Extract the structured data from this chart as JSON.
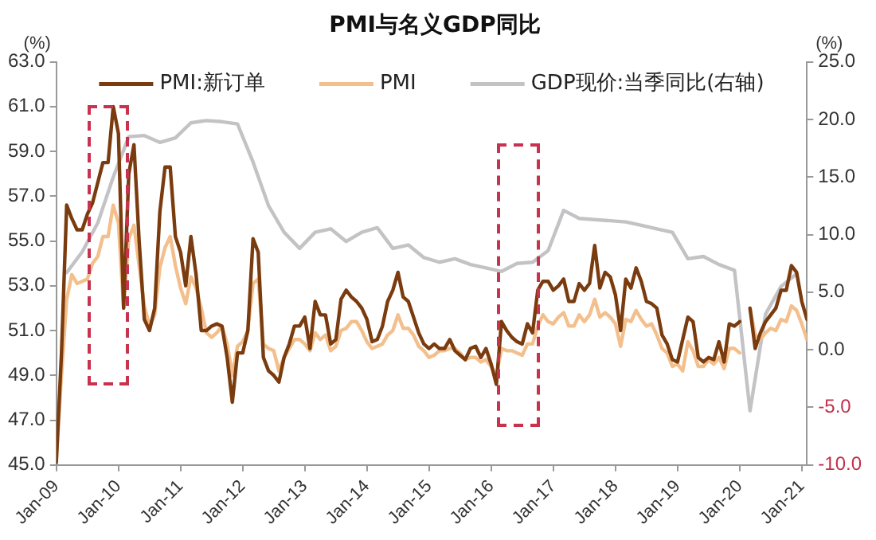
{
  "chart_data": {
    "type": "line",
    "title": "PMI与名义GDP同比",
    "ylabel": "(%)",
    "y2label": "(%)",
    "xlim": [
      "2009-01",
      "2021-02"
    ],
    "xticks": [
      {
        "value": "2009-01",
        "label": "Jan-09"
      },
      {
        "value": "2010-01",
        "label": "Jan-10"
      },
      {
        "value": "2011-01",
        "label": "Jan-11"
      },
      {
        "value": "2012-01",
        "label": "Jan-12"
      },
      {
        "value": "2013-01",
        "label": "Jan-13"
      },
      {
        "value": "2014-01",
        "label": "Jan-14"
      },
      {
        "value": "2015-01",
        "label": "Jan-15"
      },
      {
        "value": "2016-01",
        "label": "Jan-16"
      },
      {
        "value": "2017-01",
        "label": "Jan-17"
      },
      {
        "value": "2018-01",
        "label": "Jan-18"
      },
      {
        "value": "2019-01",
        "label": "Jan-19"
      },
      {
        "value": "2020-01",
        "label": "Jan-20"
      },
      {
        "value": "2021-01",
        "label": "Jan-21"
      }
    ],
    "ylim": [
      45,
      63
    ],
    "yticks": [
      {
        "value": 45,
        "label": "45.0"
      },
      {
        "value": 47,
        "label": "47.0"
      },
      {
        "value": 49,
        "label": "49.0"
      },
      {
        "value": 51,
        "label": "51.0"
      },
      {
        "value": 53,
        "label": "53.0"
      },
      {
        "value": 55,
        "label": "55.0"
      },
      {
        "value": 57,
        "label": "57.0"
      },
      {
        "value": 59,
        "label": "59.0"
      },
      {
        "value": 61,
        "label": "61.0"
      },
      {
        "value": 63,
        "label": "63.0"
      }
    ],
    "y2lim": [
      -10,
      25
    ],
    "y2ticks": [
      {
        "value": -10,
        "label": "-10.0"
      },
      {
        "value": -5,
        "label": "-5.0"
      },
      {
        "value": 0,
        "label": "0.0"
      },
      {
        "value": 5,
        "label": "5.0"
      },
      {
        "value": 10,
        "label": "10.0"
      },
      {
        "value": 15,
        "label": "15.0"
      },
      {
        "value": 20,
        "label": "20.0"
      },
      {
        "value": 25,
        "label": "25.0"
      }
    ],
    "grid": false,
    "legend": "top",
    "marker": "none",
    "line_style": "solid",
    "x": [
      "2009-01",
      "2009-02",
      "2009-03",
      "2009-04",
      "2009-05",
      "2009-06",
      "2009-07",
      "2009-08",
      "2009-09",
      "2009-10",
      "2009-11",
      "2009-12",
      "2010-01",
      "2010-02",
      "2010-03",
      "2010-04",
      "2010-05",
      "2010-06",
      "2010-07",
      "2010-08",
      "2010-09",
      "2010-10",
      "2010-11",
      "2010-12",
      "2011-01",
      "2011-02",
      "2011-03",
      "2011-04",
      "2011-05",
      "2011-06",
      "2011-07",
      "2011-08",
      "2011-09",
      "2011-10",
      "2011-11",
      "2011-12",
      "2012-01",
      "2012-02",
      "2012-03",
      "2012-04",
      "2012-05",
      "2012-06",
      "2012-07",
      "2012-08",
      "2012-09",
      "2012-10",
      "2012-11",
      "2012-12",
      "2013-01",
      "2013-02",
      "2013-03",
      "2013-04",
      "2013-05",
      "2013-06",
      "2013-07",
      "2013-08",
      "2013-09",
      "2013-10",
      "2013-11",
      "2013-12",
      "2014-01",
      "2014-02",
      "2014-03",
      "2014-04",
      "2014-05",
      "2014-06",
      "2014-07",
      "2014-08",
      "2014-09",
      "2014-10",
      "2014-11",
      "2014-12",
      "2015-01",
      "2015-02",
      "2015-03",
      "2015-04",
      "2015-05",
      "2015-06",
      "2015-07",
      "2015-08",
      "2015-09",
      "2015-10",
      "2015-11",
      "2015-12",
      "2016-01",
      "2016-02",
      "2016-03",
      "2016-04",
      "2016-05",
      "2016-06",
      "2016-07",
      "2016-08",
      "2016-09",
      "2016-10",
      "2016-11",
      "2016-12",
      "2017-01",
      "2017-02",
      "2017-03",
      "2017-04",
      "2017-05",
      "2017-06",
      "2017-07",
      "2017-08",
      "2017-09",
      "2017-10",
      "2017-11",
      "2017-12",
      "2018-01",
      "2018-02",
      "2018-03",
      "2018-04",
      "2018-05",
      "2018-06",
      "2018-07",
      "2018-08",
      "2018-09",
      "2018-10",
      "2018-11",
      "2018-12",
      "2019-01",
      "2019-02",
      "2019-03",
      "2019-04",
      "2019-05",
      "2019-06",
      "2019-07",
      "2019-08",
      "2019-09",
      "2019-10",
      "2019-11",
      "2019-12",
      "2020-01",
      "2020-02",
      "2020-03",
      "2020-04",
      "2020-05",
      "2020-06",
      "2020-07",
      "2020-08",
      "2020-09",
      "2020-10",
      "2020-11",
      "2020-12",
      "2021-01",
      "2021-02"
    ],
    "series": [
      {
        "name": "PMI:新订单",
        "color": "#7a3b0e",
        "values": [
          45.1,
          50.0,
          56.6,
          56.0,
          55.5,
          55.5,
          56.2,
          56.7,
          57.6,
          58.5,
          58.5,
          61.0,
          59.8,
          52.0,
          58.0,
          59.3,
          55.0,
          51.5,
          51.0,
          52.0,
          56.3,
          58.3,
          58.3,
          55.2,
          54.5,
          53.0,
          55.2,
          53.5,
          51.0,
          51.0,
          51.2,
          51.3,
          51.2,
          49.8,
          47.8,
          50.0,
          50.0,
          51.0,
          55.1,
          54.5,
          49.8,
          49.2,
          49.0,
          48.7,
          49.8,
          50.4,
          51.2,
          51.2,
          51.6,
          50.2,
          52.3,
          51.7,
          51.7,
          50.4,
          50.6,
          52.4,
          52.8,
          52.5,
          52.3,
          52.0,
          51.5,
          50.5,
          50.6,
          51.2,
          52.3,
          52.8,
          53.6,
          52.5,
          52.3,
          51.6,
          50.9,
          50.4,
          50.2,
          50.4,
          50.2,
          50.2,
          50.6,
          50.1,
          49.9,
          49.7,
          50.2,
          50.3,
          49.8,
          50.2,
          49.5,
          48.6,
          51.4,
          51.0,
          50.7,
          50.5,
          50.4,
          51.3,
          50.9,
          52.8,
          53.2,
          53.2,
          52.8,
          53.0,
          53.3,
          52.3,
          52.3,
          53.1,
          52.8,
          53.1,
          54.8,
          52.9,
          53.6,
          53.4,
          52.6,
          51.0,
          53.3,
          52.9,
          53.8,
          53.2,
          52.3,
          52.2,
          52.0,
          50.8,
          50.4,
          49.7,
          49.6,
          50.6,
          51.6,
          51.4,
          49.8,
          49.6,
          49.8,
          49.7,
          50.5,
          49.6,
          51.3,
          51.2,
          51.4,
          null,
          52.0,
          50.2,
          50.9,
          51.4,
          51.7,
          52.0,
          52.8,
          52.8,
          53.9,
          53.6,
          52.3,
          51.5
        ]
      },
      {
        "name": "PMI",
        "color": "#f3bf8c",
        "values": [
          45.3,
          49.0,
          52.4,
          53.5,
          53.1,
          53.2,
          53.3,
          54.0,
          54.3,
          55.2,
          55.2,
          56.6,
          55.8,
          52.0,
          55.1,
          55.7,
          53.9,
          52.1,
          51.2,
          51.7,
          53.8,
          54.7,
          55.2,
          53.9,
          52.9,
          52.2,
          53.4,
          52.9,
          52.0,
          50.9,
          50.7,
          50.9,
          51.2,
          50.4,
          49.0,
          50.3,
          50.5,
          51.0,
          53.1,
          53.3,
          50.4,
          50.2,
          50.1,
          49.2,
          49.8,
          50.2,
          50.6,
          50.6,
          50.4,
          50.1,
          50.9,
          50.6,
          50.8,
          50.1,
          50.3,
          51.0,
          51.1,
          51.4,
          51.4,
          51.0,
          50.5,
          50.2,
          50.3,
          50.4,
          50.8,
          51.0,
          51.7,
          51.1,
          51.1,
          50.8,
          50.3,
          50.1,
          49.8,
          49.9,
          50.1,
          50.1,
          50.2,
          50.2,
          50.0,
          49.7,
          49.8,
          49.8,
          49.6,
          49.7,
          49.4,
          49.0,
          50.2,
          50.1,
          50.1,
          50.0,
          49.9,
          50.4,
          50.4,
          51.2,
          51.7,
          51.4,
          51.3,
          51.6,
          51.8,
          51.2,
          51.2,
          51.7,
          51.4,
          51.7,
          52.4,
          51.6,
          51.8,
          51.6,
          51.3,
          50.3,
          51.5,
          51.4,
          51.9,
          51.5,
          51.2,
          51.3,
          50.8,
          50.2,
          50.0,
          49.4,
          49.5,
          49.2,
          50.5,
          50.1,
          49.4,
          49.4,
          49.7,
          49.5,
          49.8,
          49.3,
          50.2,
          50.2,
          50.0,
          null,
          52.0,
          50.8,
          50.6,
          50.9,
          51.1,
          51.0,
          51.5,
          51.4,
          52.1,
          51.9,
          51.3,
          50.6
        ]
      },
      {
        "name": "GDP现价:当季同比(右轴)",
        "color": "#c3c3c6",
        "axis": "y2",
        "x": [
          "2009-03",
          "2009-06",
          "2009-09",
          "2009-12",
          "2010-03",
          "2010-06",
          "2010-09",
          "2010-12",
          "2011-03",
          "2011-06",
          "2011-09",
          "2011-12",
          "2012-03",
          "2012-06",
          "2012-09",
          "2012-12",
          "2013-03",
          "2013-06",
          "2013-09",
          "2013-12",
          "2014-03",
          "2014-06",
          "2014-09",
          "2014-12",
          "2015-03",
          "2015-06",
          "2015-09",
          "2015-12",
          "2016-03",
          "2016-06",
          "2016-09",
          "2016-12",
          "2017-03",
          "2017-06",
          "2017-09",
          "2017-12",
          "2018-03",
          "2018-06",
          "2018-09",
          "2018-12",
          "2019-03",
          "2019-06",
          "2019-09",
          "2019-12",
          "2020-03",
          "2020-06",
          "2020-09",
          "2020-12"
        ],
        "values": [
          6.7,
          8.5,
          11.0,
          15.0,
          18.5,
          18.6,
          18.0,
          18.4,
          19.7,
          19.9,
          19.8,
          19.6,
          16.3,
          12.5,
          10.2,
          8.8,
          10.2,
          10.5,
          9.4,
          10.2,
          10.6,
          8.8,
          9.1,
          8.0,
          7.6,
          7.9,
          7.4,
          7.1,
          6.8,
          7.5,
          7.6,
          8.6,
          12.1,
          11.4,
          11.3,
          11.2,
          11.1,
          10.8,
          10.5,
          10.2,
          7.9,
          8.1,
          7.4,
          6.9,
          -5.3,
          3.1,
          5.5,
          6.6
        ]
      }
    ]
  }
}
